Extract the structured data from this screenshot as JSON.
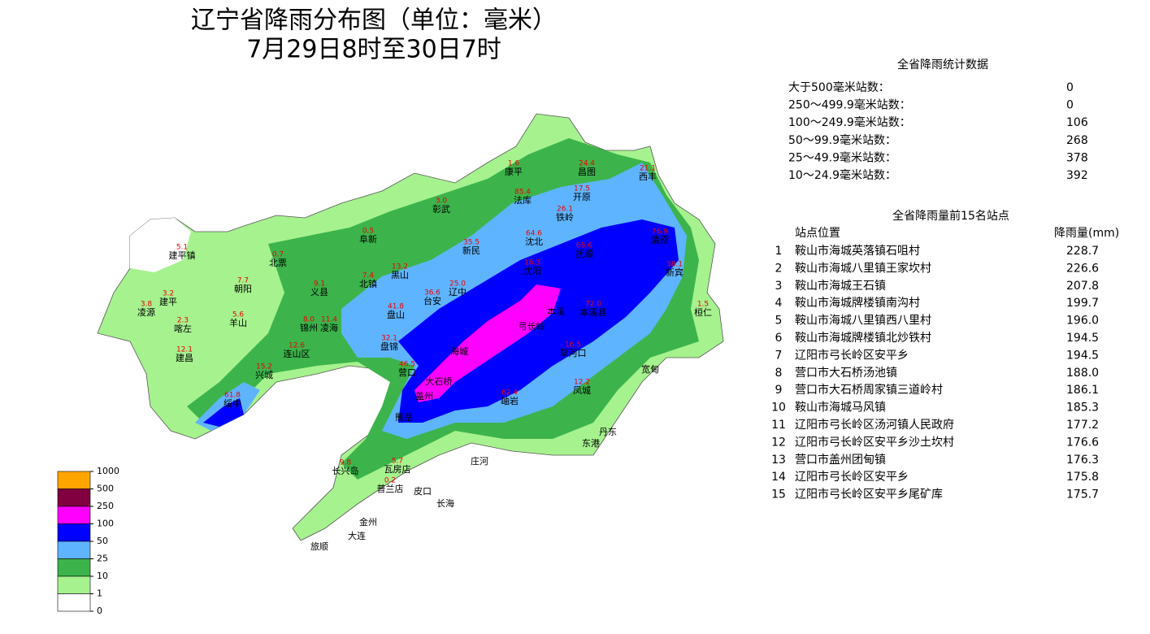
{
  "title": "辽宁省降雨分布图（单位：毫米）",
  "subtitle": "7月29日8时至30日7时",
  "stats": {
    "title": "全省降雨统计数据",
    "rows": [
      [
        "大于500毫米站数：",
        "0"
      ],
      [
        "250～499.9毫米站数：",
        "0"
      ],
      [
        "100～249.9毫米站数：",
        "106"
      ],
      [
        "50～99.9毫米站数：",
        "268"
      ],
      [
        "25～49.9毫米站数：",
        "378"
      ],
      [
        "10～24.9毫米站数：",
        "392"
      ]
    ]
  },
  "top15": {
    "title": "全省降雨量前15名站点",
    "headers": [
      "站点位置",
      "降雨量(mm)"
    ],
    "rows": [
      [
        "1",
        "鞍山市海城英落镇石咀村",
        "228.7"
      ],
      [
        "2",
        "鞍山市海城八里镇王家坎村",
        "226.6"
      ],
      [
        "3",
        "鞍山市海城王石镇",
        "207.8"
      ],
      [
        "4",
        "鞍山市海城牌楼镇南沟村",
        "199.7"
      ],
      [
        "5",
        "鞍山市海城八里镇西八里村",
        "196.0"
      ],
      [
        "6",
        "鞍山市海城牌楼镇北炒铁村",
        "194.5"
      ],
      [
        "7",
        "辽阳市弓长岭区安平乡",
        "194.5"
      ],
      [
        "8",
        "营口市大石桥汤池镇",
        "188.0"
      ],
      [
        "9",
        "营口市大石桥周家镇三道岭村",
        "186.1"
      ],
      [
        "10",
        "鞍山市海城马风镇",
        "185.3"
      ],
      [
        "11",
        "辽阳市弓长岭区汤河镇人民政府",
        "177.2"
      ],
      [
        "12",
        "辽阳市弓长岭区安平乡沙土坎村",
        "176.6"
      ],
      [
        "13",
        "营口市盖州团甸镇",
        "176.3"
      ],
      [
        "14",
        "辽阳市弓长岭区安平乡",
        "175.8"
      ],
      [
        "15",
        "辽阳市弓长岭区安平乡尾矿库",
        "175.7"
      ]
    ]
  },
  "legend": {
    "levels": [
      {
        "label": "1000",
        "color": "#ffa500"
      },
      {
        "label": "500",
        "color": "#800040"
      },
      {
        "label": "250",
        "color": "#ff00ff"
      },
      {
        "label": "100",
        "color": "#0000ff"
      },
      {
        "label": "50",
        "color": "#5fb4ff"
      },
      {
        "label": "25",
        "color": "#3cb44b"
      },
      {
        "label": "10",
        "color": "#a6f28f"
      },
      {
        "label": "1",
        "color": "#ffffff"
      },
      {
        "label": "0"
      }
    ]
  },
  "stations": [
    {
      "name": "康平",
      "value": "1.6"
    },
    {
      "name": "昌图",
      "value": "24.4"
    },
    {
      "name": "西丰",
      "value": "21.1"
    },
    {
      "name": "法库",
      "value": "85.4"
    },
    {
      "name": "开原",
      "value": "17.5"
    },
    {
      "name": "彰武",
      "value": "3.0"
    },
    {
      "name": "铁岭",
      "value": "26.1"
    },
    {
      "name": "阜新",
      "value": "0.5"
    },
    {
      "name": "沈北",
      "value": "64.6"
    },
    {
      "name": "清原",
      "value": "76.9"
    },
    {
      "name": "新民",
      "value": "35.5"
    },
    {
      "name": "抚顺",
      "value": "65.6"
    },
    {
      "name": "建平镇",
      "value": "5.1"
    },
    {
      "name": "北票",
      "value": "0.7"
    },
    {
      "name": "新宾",
      "value": "38.1"
    },
    {
      "name": "黑山",
      "value": "13.2"
    },
    {
      "name": "北镇",
      "value": "7.4"
    },
    {
      "name": "沈阳",
      "value": "16.3"
    },
    {
      "name": "朝阳",
      "value": "7.7"
    },
    {
      "name": "义县",
      "value": "9.1"
    },
    {
      "name": "辽中",
      "value": "25.0"
    },
    {
      "name": "台安",
      "value": "36.6"
    },
    {
      "name": "本溪"
    },
    {
      "name": "本溪县",
      "value": "72.0"
    },
    {
      "name": "桓仁",
      "value": "1.5"
    },
    {
      "name": "凌源",
      "value": "3.8"
    },
    {
      "name": "建平",
      "value": "3.2"
    },
    {
      "name": "盘山",
      "value": "41.8"
    },
    {
      "name": "喀左",
      "value": "2.3"
    },
    {
      "name": "羊山",
      "value": "5.6"
    },
    {
      "name": "锦州",
      "value": "8.0"
    },
    {
      "name": "凌海",
      "value": "11.4"
    },
    {
      "name": "弓长岭"
    },
    {
      "name": "盘锦",
      "value": "32.1"
    },
    {
      "name": "海城"
    },
    {
      "name": "连山区",
      "value": "12.6"
    },
    {
      "name": "建昌",
      "value": "12.1"
    },
    {
      "name": "草河口",
      "value": "16.5"
    },
    {
      "name": "宽甸"
    },
    {
      "name": "营口",
      "value": "46.5"
    },
    {
      "name": "兴城",
      "value": "15.2"
    },
    {
      "name": "大石桥"
    },
    {
      "name": "凤城",
      "value": "12.2"
    },
    {
      "name": "盖州"
    },
    {
      "name": "岫岩",
      "value": "62.4"
    },
    {
      "name": "绥中",
      "value": "61.8"
    },
    {
      "name": "熊岳"
    },
    {
      "name": "丹东"
    },
    {
      "name": "东港"
    },
    {
      "name": "长兴岛",
      "value": "9.8"
    },
    {
      "name": "瓦房店",
      "value": "5.7"
    },
    {
      "name": "庄河"
    },
    {
      "name": "普兰店",
      "value": "0.2"
    },
    {
      "name": "皮口"
    },
    {
      "name": "长海"
    },
    {
      "name": "金州"
    },
    {
      "name": "大连"
    },
    {
      "name": "旅顺"
    }
  ]
}
